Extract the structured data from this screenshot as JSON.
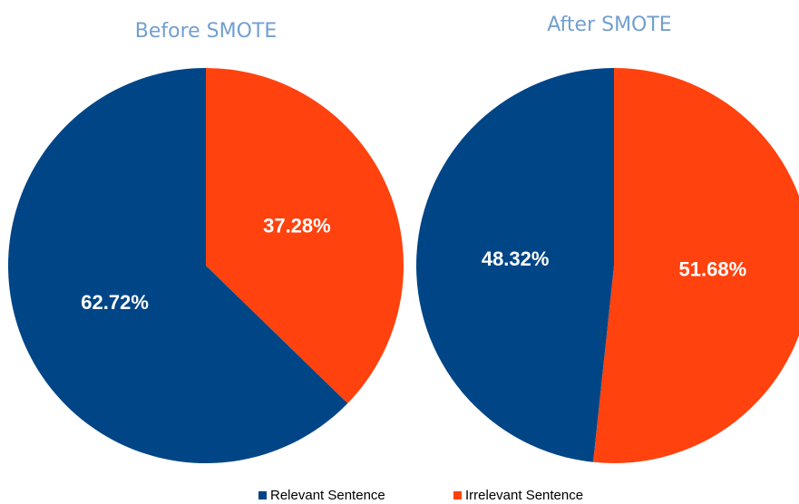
{
  "legend": {
    "names": [
      "Relevant Sentence",
      "Irrelevant Sentence"
    ],
    "colors": [
      "#004586",
      "#ff420e"
    ]
  },
  "chart_data": [
    {
      "type": "pie",
      "title": "Before SMOTE",
      "values": [
        62.72,
        37.28
      ],
      "value_labels": [
        "62.72%",
        "37.28%"
      ]
    },
    {
      "type": "pie",
      "title": "After SMOTE",
      "values": [
        48.32,
        51.68
      ],
      "value_labels": [
        "48.32%",
        "51.68%"
      ]
    }
  ]
}
